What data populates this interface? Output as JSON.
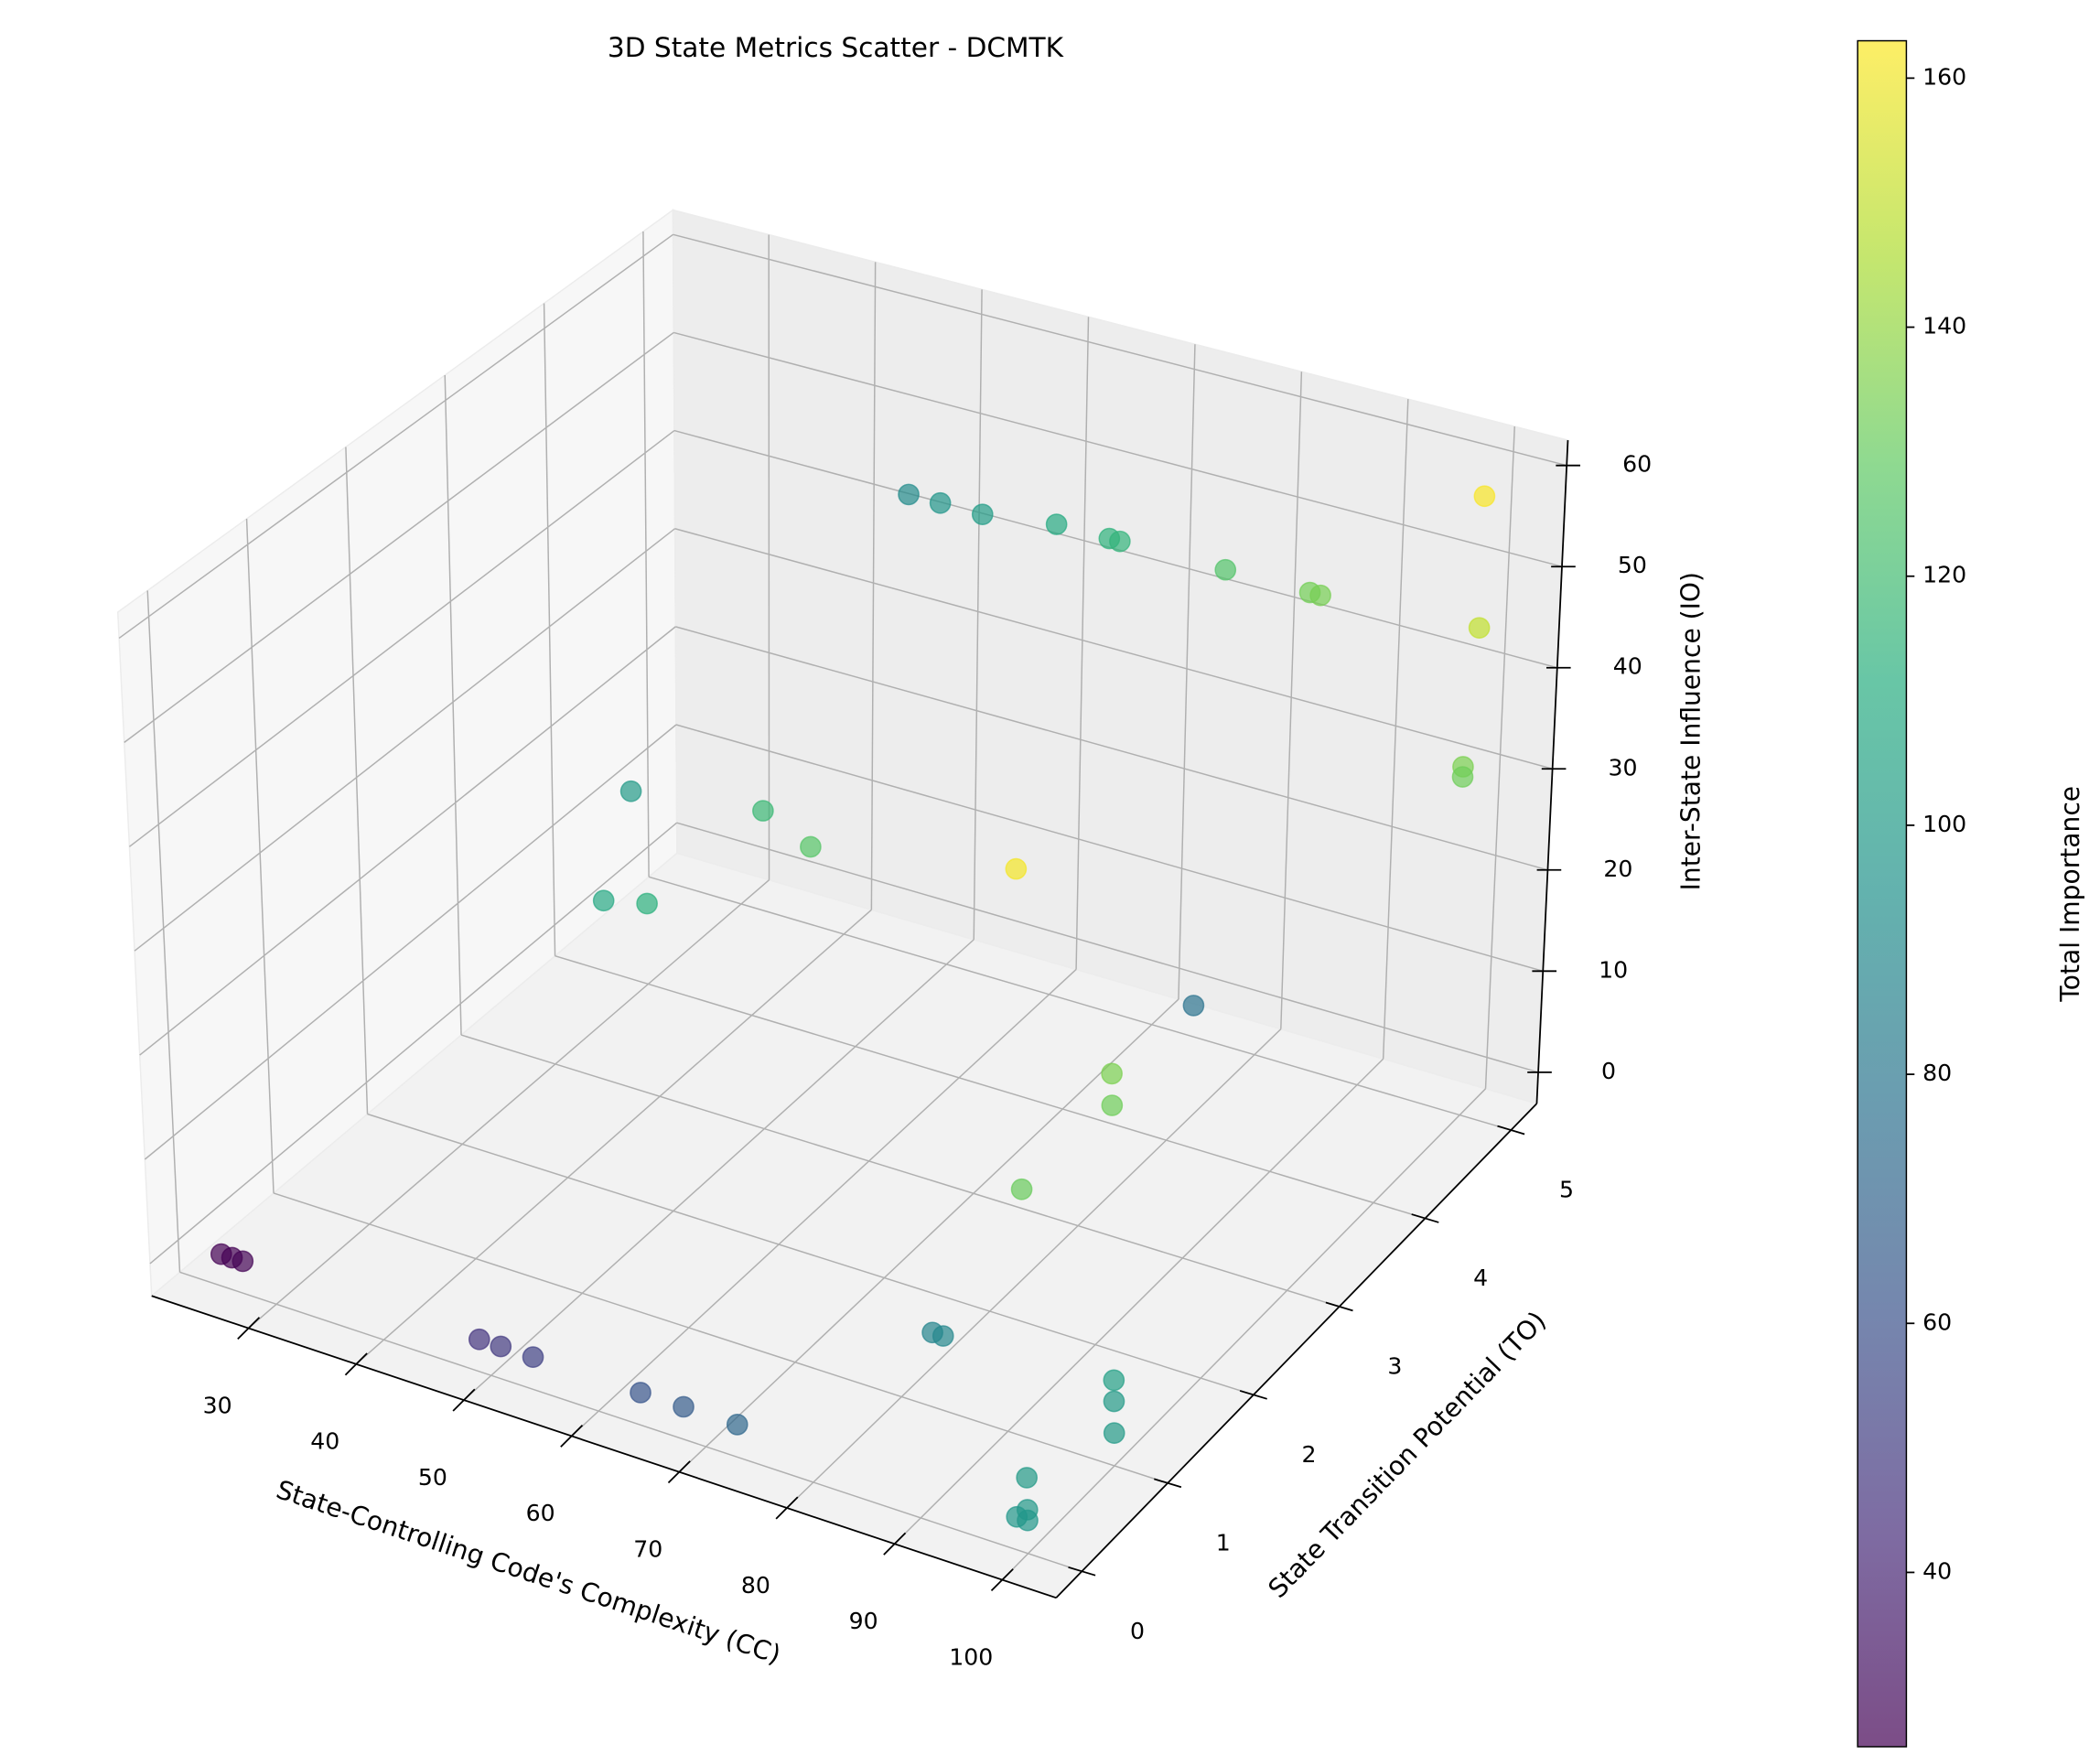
{
  "chart_data": {
    "type": "scatter3d",
    "title": "3D State Metrics Scatter - DCMTK",
    "xlabel": "State-Controlling Code's Complexity (CC)",
    "ylabel": "State Transition Potential (TO)",
    "zlabel": "Inter-State Influence (IO)",
    "colorbar_label": "Total Importance",
    "x": [
      25,
      26,
      27,
      49,
      51,
      54,
      64,
      68,
      73,
      83,
      84,
      100,
      100,
      100,
      100,
      100,
      100,
      99,
      100,
      100,
      100,
      74,
      54,
      62,
      66,
      68,
      75,
      100,
      46,
      49,
      53,
      60,
      65,
      66,
      76,
      84,
      85,
      100,
      100,
      99,
      99
    ],
    "y": [
      0,
      0,
      0,
      0,
      0,
      0,
      0,
      0,
      0,
      1,
      1,
      1,
      1,
      1,
      0,
      0,
      0,
      0,
      0,
      1,
      1,
      5,
      1.2,
      0,
      0,
      1,
      0.7,
      0,
      5,
      5,
      5,
      5,
      5,
      5,
      5,
      5,
      5,
      5,
      5,
      5,
      5
    ],
    "z": [
      0,
      0,
      0,
      0,
      0,
      0,
      0,
      0,
      0,
      4,
      4,
      5,
      3,
      0,
      4,
      1,
      0,
      0,
      31,
      31,
      34,
      0,
      45,
      46,
      47,
      49,
      50,
      61,
      43,
      43,
      43,
      44,
      44,
      44,
      44,
      44,
      44,
      58,
      45,
      31,
      30
    ],
    "c": [
      26,
      26,
      27,
      47,
      49,
      53,
      62,
      66,
      72,
      88,
      89,
      103,
      100,
      100,
      100,
      99,
      98,
      98,
      131,
      132,
      135,
      78,
      100,
      108,
      113,
      118,
      126,
      161,
      91,
      97,
      101,
      109,
      114,
      115,
      125,
      133,
      134,
      162,
      150,
      135,
      132
    ],
    "xlim": [
      21,
      105
    ],
    "ylim": [
      -0.3,
      5.3
    ],
    "zlim": [
      -3.1,
      62.5
    ],
    "clim": [
      26,
      163
    ],
    "xticks": [
      30,
      40,
      50,
      60,
      70,
      80,
      90,
      100
    ],
    "yticks": [
      0,
      1,
      2,
      3,
      4,
      5
    ],
    "zticks": [
      0,
      10,
      20,
      30,
      40,
      50,
      60
    ],
    "cticks": [
      40,
      60,
      80,
      100,
      120,
      140,
      160
    ],
    "colormap": "viridis",
    "alpha": 0.7,
    "grid": true
  }
}
